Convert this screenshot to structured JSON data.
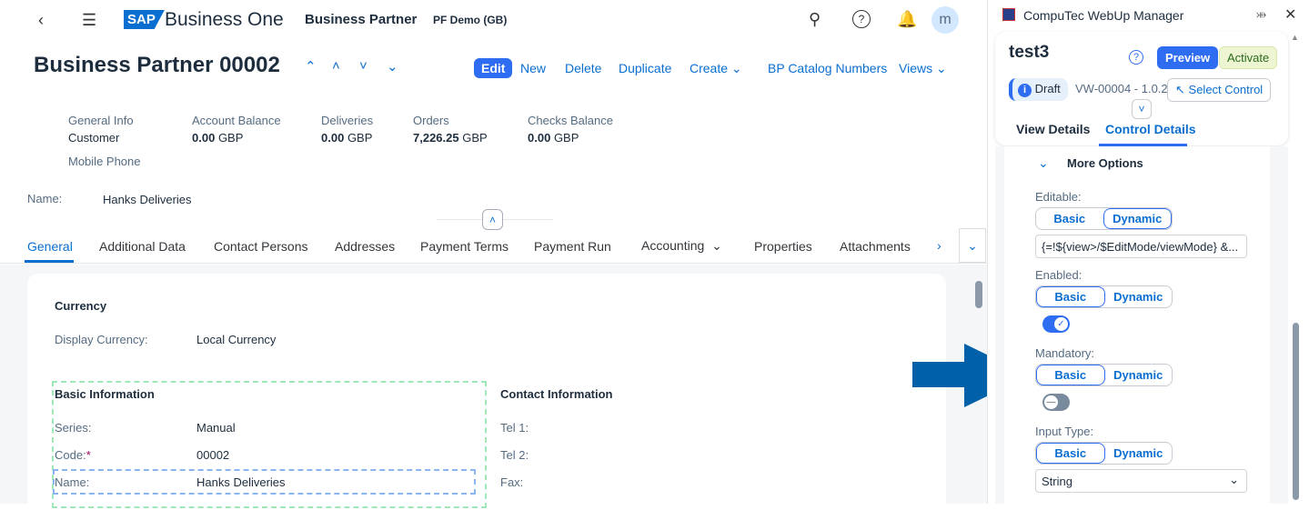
{
  "shell": {
    "logo": "SAP",
    "product": "Business One",
    "app": "Business Partner",
    "company": "PF Demo (GB)",
    "avatar": "m"
  },
  "header": {
    "title": "Business Partner 00002",
    "actions": [
      "Edit",
      "New",
      "Delete",
      "Duplicate",
      "Create",
      "BP Catalog Numbers",
      "Views"
    ]
  },
  "kpis": [
    {
      "label": "General Info",
      "value": "Customer",
      "unit": ""
    },
    {
      "label": "Account Balance",
      "value": "0.00",
      "unit": "GBP"
    },
    {
      "label": "Deliveries",
      "value": "0.00",
      "unit": "GBP"
    },
    {
      "label": "Orders",
      "value": "7,226.25",
      "unit": "GBP"
    },
    {
      "label": "Checks Balance",
      "value": "0.00",
      "unit": "GBP"
    }
  ],
  "mobile_label": "Mobile Phone",
  "name_label": "Name:",
  "name_value": "Hanks Deliveries",
  "tabs": [
    "General",
    "Additional Data",
    "Contact Persons",
    "Addresses",
    "Payment Terms",
    "Payment Run",
    "Accounting",
    "Properties",
    "Attachments"
  ],
  "content": {
    "currency_title": "Currency",
    "display_currency_label": "Display Currency:",
    "display_currency_value": "Local Currency",
    "basic_title": "Basic Information",
    "contact_title": "Contact Information",
    "series_label": "Series:",
    "series_value": "Manual",
    "code_label": "Code:",
    "code_required": "*",
    "code_value": "00002",
    "name_label": "Name:",
    "name_value": "Hanks Deliveries",
    "tel1": "Tel 1:",
    "tel2": "Tel 2:",
    "fax": "Fax:"
  },
  "panel": {
    "title": "CompuTec WebUp Manager",
    "view_name": "test3",
    "preview": "Preview",
    "activate": "Activate",
    "status": "Draft",
    "version": "VW-00004 - 1.0.2",
    "select_control": "Select Control",
    "tabs": [
      "View Details",
      "Control Details"
    ],
    "more_options": "More Options",
    "editable_label": "Editable:",
    "editable_value": "{=!${view>/$EditMode/viewMode} &...",
    "enabled_label": "Enabled:",
    "enabled_on": true,
    "mandatory_label": "Mandatory:",
    "mandatory_on": false,
    "input_type_label": "Input Type:",
    "input_type_value": "String",
    "basic": "Basic",
    "dynamic": "Dynamic"
  },
  "colors": {
    "accent": "#0a6ed1",
    "arrow": "#0060a8",
    "button": "#2e6df2"
  }
}
